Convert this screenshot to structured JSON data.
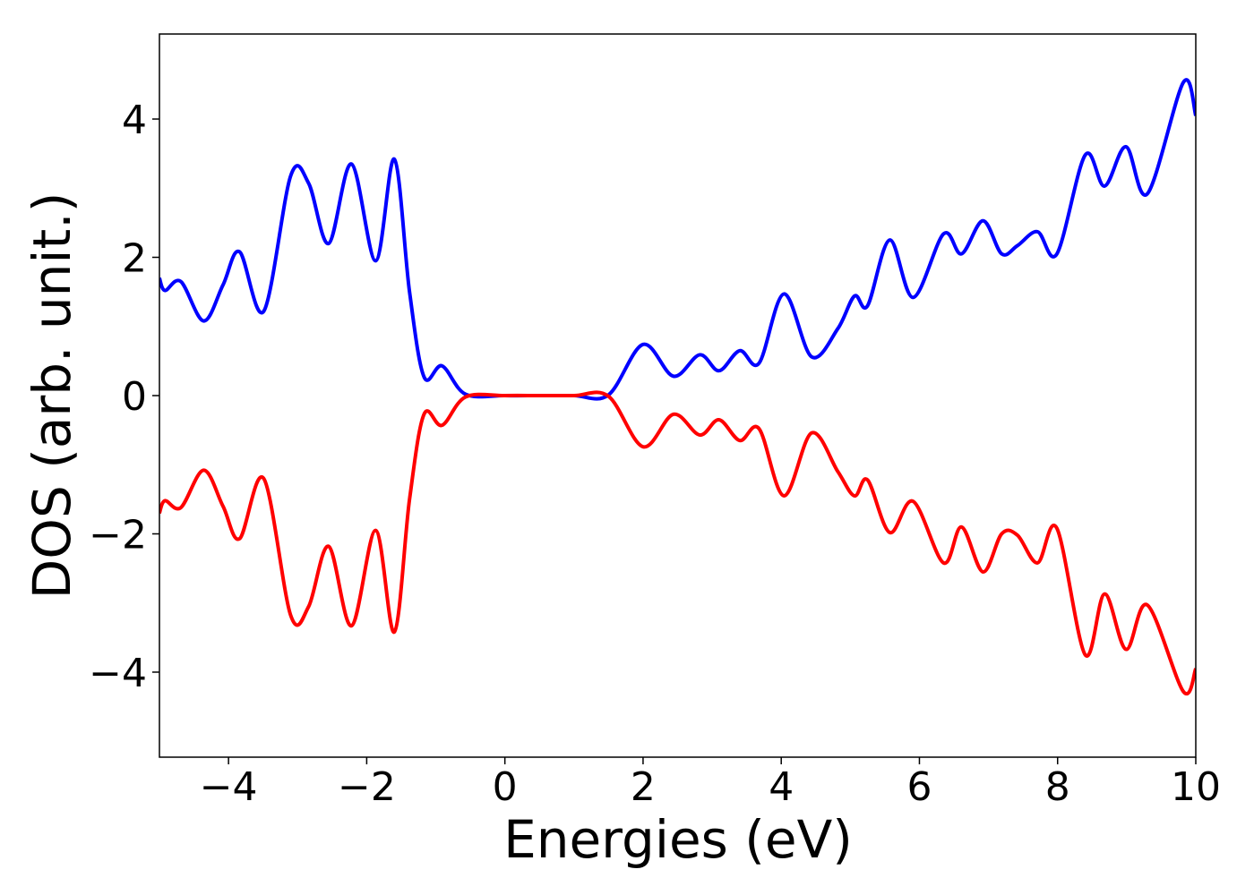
{
  "chart_data": {
    "type": "line",
    "xlabel": "Energies (eV)",
    "ylabel": "DOS (arb. unit.)",
    "x": [
      -5,
      -4.92,
      -4.69,
      -4.36,
      -4.08,
      -3.84,
      -3.49,
      -3.1,
      -2.84,
      -2.55,
      -2.22,
      -1.87,
      -1.6,
      -1.38,
      -1.17,
      -0.91,
      -0.57,
      0,
      0.5,
      1.0,
      1.5,
      2.0,
      2.44,
      2.82,
      3.1,
      3.4,
      3.68,
      4.04,
      4.44,
      4.82,
      5.06,
      5.25,
      5.57,
      5.91,
      6.35,
      6.61,
      6.92,
      7.19,
      7.42,
      7.71,
      7.99,
      8.4,
      8.68,
      8.99,
      9.3,
      9.82,
      10
    ],
    "series": [
      {
        "color": "#0000ff",
        "values": [
          1.7,
          1.52,
          1.65,
          1.08,
          1.6,
          2.08,
          1.22,
          3.18,
          3.07,
          2.2,
          3.35,
          1.95,
          3.42,
          1.5,
          0.27,
          0.43,
          0.02,
          0,
          0,
          0,
          0.01,
          0.74,
          0.28,
          0.59,
          0.36,
          0.65,
          0.47,
          1.47,
          0.56,
          0.97,
          1.44,
          1.3,
          2.25,
          1.42,
          2.34,
          2.05,
          2.53,
          2.05,
          2.17,
          2.37,
          2.05,
          3.48,
          3.03,
          3.6,
          2.92,
          4.53,
          4.05
        ]
      },
      {
        "color": "#ff0000",
        "values": [
          -1.7,
          -1.52,
          -1.62,
          -1.08,
          -1.6,
          -2.07,
          -1.2,
          -3.18,
          -3.05,
          -2.18,
          -3.33,
          -1.95,
          -3.42,
          -1.5,
          -0.27,
          -0.43,
          -0.02,
          0,
          0,
          0,
          -0.01,
          -0.74,
          -0.27,
          -0.57,
          -0.35,
          -0.65,
          -0.48,
          -1.45,
          -0.54,
          -1.1,
          -1.45,
          -1.22,
          -1.98,
          -1.53,
          -2.42,
          -1.9,
          -2.55,
          -2.0,
          -2.02,
          -2.42,
          -1.92,
          -3.75,
          -2.87,
          -3.67,
          -3.03,
          -4.28,
          -3.95
        ]
      }
    ],
    "xlim": [
      -5,
      10
    ],
    "xticks": [
      {
        "value": -4,
        "label": "−4"
      },
      {
        "value": -2,
        "label": "−2"
      },
      0,
      2,
      4,
      6,
      8,
      10
    ],
    "ylim": [
      -5.23,
      5.23
    ],
    "yticks": [
      {
        "value": -4,
        "label": "−4"
      },
      {
        "value": -2,
        "label": "−2"
      },
      0,
      2,
      4
    ]
  }
}
